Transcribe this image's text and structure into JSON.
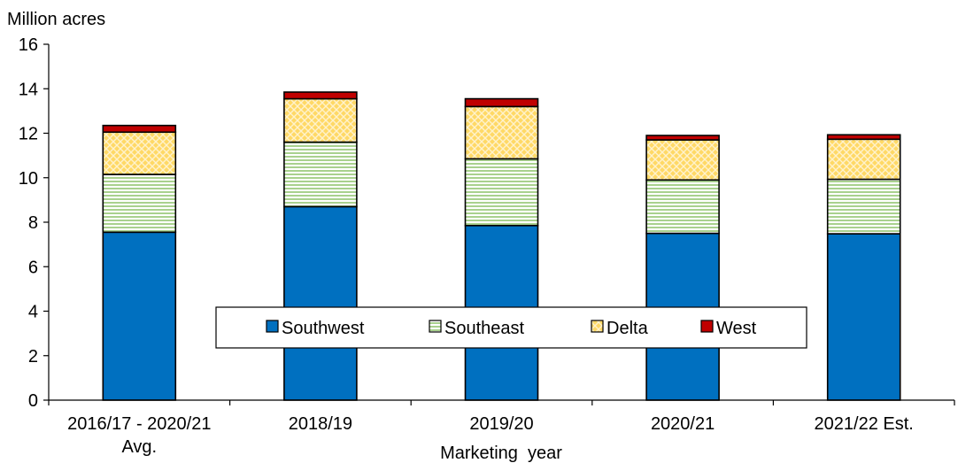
{
  "chart_data": {
    "type": "bar",
    "stacked": true,
    "ylabel": "Million acres",
    "xlabel": "Marketing  year",
    "ylim": [
      0,
      16
    ],
    "yticks": [
      0,
      2,
      4,
      6,
      8,
      10,
      12,
      14,
      16
    ],
    "grid": false,
    "legend_position": "center",
    "categories": [
      [
        "2016/17 - 2020/21",
        "Avg."
      ],
      [
        "2018/19"
      ],
      [
        "2019/20"
      ],
      [
        "2020/21"
      ],
      [
        "2021/22 Est."
      ]
    ],
    "series": [
      {
        "name": "Southwest",
        "color": "#0070C0",
        "pattern": "solid",
        "values": [
          7.55,
          8.7,
          7.85,
          7.5,
          7.48
        ]
      },
      {
        "name": "Southeast",
        "color": "#C6E0B4",
        "pattern": "horizontal",
        "values": [
          2.6,
          2.9,
          3.0,
          2.4,
          2.45
        ]
      },
      {
        "name": "Delta",
        "color": "#FFD966",
        "pattern": "crosshatch",
        "values": [
          1.9,
          1.95,
          2.35,
          1.8,
          1.8
        ]
      },
      {
        "name": "West",
        "color": "#C00000",
        "pattern": "solid",
        "values": [
          0.3,
          0.3,
          0.35,
          0.2,
          0.2
        ]
      }
    ]
  }
}
